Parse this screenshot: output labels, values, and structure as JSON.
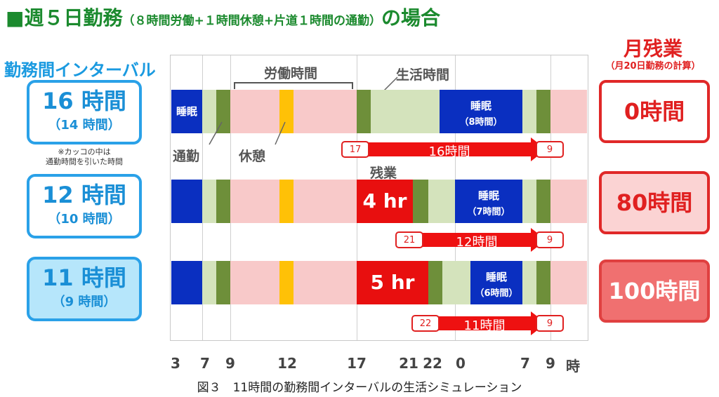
{
  "title": {
    "main": "■週５日勤務",
    "sub": "（８時間労働+１時間休憩+片道１時間の通勤）",
    "tail": "の場合"
  },
  "left_header": "勤務間インターバル",
  "intervals": [
    {
      "big": "16 時間",
      "small": "（14 時間）"
    },
    {
      "big": "12 時間",
      "small": "（10 時間）"
    },
    {
      "big": "11 時間",
      "small": "（9 時間）"
    }
  ],
  "note": "※カッコの中は\n通勤時間を引いた時間",
  "right_header": {
    "title": "月残業",
    "sub": "（月20日勤務の計算）"
  },
  "overtime": [
    "0時間",
    "80時間",
    "100時間"
  ],
  "labels": {
    "work_time": "労働時間",
    "life_time": "生活時間",
    "commute": "通勤",
    "break": "休憩",
    "overtime": "残業",
    "sleep_short": "睡眠"
  },
  "rows": [
    {
      "sleep_text": "睡眠",
      "sleep_sub": "（8時間）",
      "overtime_text": "",
      "arrow": {
        "start": "17",
        "label": "16時間",
        "end": "9"
      }
    },
    {
      "sleep_text": "睡眠",
      "sleep_sub": "（7時間）",
      "overtime_text": "4 hr",
      "arrow": {
        "start": "21",
        "label": "12時間",
        "end": "9"
      }
    },
    {
      "sleep_text": "睡眠",
      "sleep_sub": "（6時間）",
      "overtime_text": "5 hr",
      "arrow": {
        "start": "22",
        "label": "11時間",
        "end": "9"
      }
    }
  ],
  "ticks": [
    "3",
    "7",
    "9",
    "12",
    "17",
    "21",
    "22",
    "0",
    "7",
    "9",
    "時"
  ],
  "caption": "図３　11時間の勤務間インターバルの生活シミュレーション",
  "colors": {
    "sleep": "#0a2fc0",
    "life": "#d4e3bc",
    "commute": "#6e8f3a",
    "work": "#f8c9c9",
    "break": "#ffc107",
    "overtime": "#e80f0f",
    "arrow": "#ee1111",
    "title_green": "#1b8a2e",
    "interval_blue": "#2aa1e8"
  }
}
